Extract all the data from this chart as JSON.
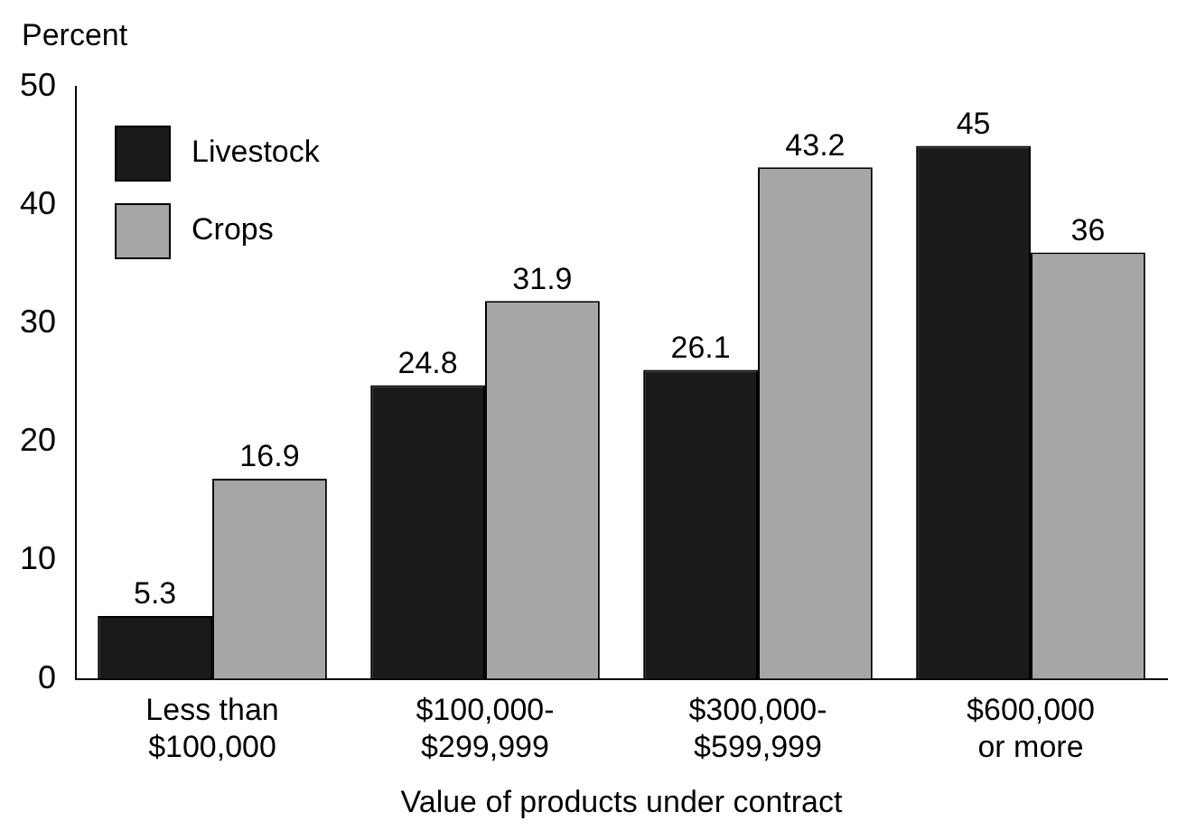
{
  "chart_data": {
    "type": "bar",
    "ylabel": "Percent",
    "xlabel": "Value of products under contract",
    "categories": [
      "Less than\n$100,000",
      "$100,000-\n$299,999",
      "$300,000-\n$599,999",
      "$600,000\nor more"
    ],
    "series": [
      {
        "name": "Livestock",
        "color": "#1a1a1a",
        "values": [
          5.3,
          24.8,
          26.1,
          45
        ]
      },
      {
        "name": "Crops",
        "color": "#a6a6a6",
        "values": [
          16.9,
          31.9,
          43.2,
          36
        ]
      }
    ],
    "ylim": [
      0,
      50
    ],
    "yticks": [
      0,
      10,
      20,
      30,
      40,
      50
    ],
    "grid": false,
    "legend": "top left",
    "data_labels": true
  }
}
